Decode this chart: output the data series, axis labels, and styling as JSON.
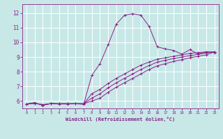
{
  "xlabel": "Windchill (Refroidissement éolien,°C)",
  "xlim": [
    -0.5,
    23.5
  ],
  "ylim": [
    5.5,
    12.6
  ],
  "yticks": [
    6,
    7,
    8,
    9,
    10,
    11,
    12
  ],
  "xticks": [
    0,
    1,
    2,
    3,
    4,
    5,
    6,
    7,
    8,
    9,
    10,
    11,
    12,
    13,
    14,
    15,
    16,
    17,
    18,
    19,
    20,
    21,
    22,
    23
  ],
  "background_color": "#c8e8e8",
  "grid_color": "#aacccc",
  "line_color": "#882288",
  "lines": [
    {
      "x": [
        0,
        1,
        2,
        3,
        4,
        5,
        6,
        7,
        8,
        9,
        10,
        11,
        12,
        13,
        14,
        15,
        16,
        17,
        18,
        19,
        20,
        21,
        22,
        23
      ],
      "y": [
        5.8,
        5.9,
        5.7,
        5.85,
        5.8,
        5.8,
        5.82,
        5.78,
        7.75,
        8.55,
        9.85,
        11.25,
        11.85,
        11.95,
        11.85,
        11.1,
        9.7,
        9.55,
        9.45,
        9.2,
        9.5,
        9.2,
        9.35,
        9.3
      ]
    },
    {
      "x": [
        0,
        1,
        2,
        3,
        4,
        5,
        6,
        7,
        8,
        9,
        10,
        11,
        12,
        13,
        14,
        15,
        16,
        17,
        18,
        19,
        20,
        21,
        22,
        23
      ],
      "y": [
        5.8,
        5.85,
        5.75,
        5.82,
        5.82,
        5.82,
        5.82,
        5.82,
        6.5,
        6.8,
        7.2,
        7.55,
        7.85,
        8.15,
        8.45,
        8.65,
        8.85,
        8.95,
        9.05,
        9.15,
        9.25,
        9.3,
        9.35,
        9.35
      ]
    },
    {
      "x": [
        0,
        1,
        2,
        3,
        4,
        5,
        6,
        7,
        8,
        9,
        10,
        11,
        12,
        13,
        14,
        15,
        16,
        17,
        18,
        19,
        20,
        21,
        22,
        23
      ],
      "y": [
        5.8,
        5.85,
        5.75,
        5.82,
        5.82,
        5.82,
        5.82,
        5.82,
        6.2,
        6.5,
        6.9,
        7.25,
        7.55,
        7.85,
        8.15,
        8.42,
        8.65,
        8.78,
        8.9,
        9.0,
        9.1,
        9.18,
        9.28,
        9.35
      ]
    },
    {
      "x": [
        0,
        1,
        2,
        3,
        4,
        5,
        6,
        7,
        8,
        9,
        10,
        11,
        12,
        13,
        14,
        15,
        16,
        17,
        18,
        19,
        20,
        21,
        22,
        23
      ],
      "y": [
        5.8,
        5.85,
        5.75,
        5.82,
        5.82,
        5.82,
        5.82,
        5.82,
        6.0,
        6.2,
        6.6,
        6.95,
        7.25,
        7.55,
        7.85,
        8.15,
        8.4,
        8.55,
        8.7,
        8.82,
        8.95,
        9.05,
        9.15,
        9.35
      ]
    }
  ]
}
